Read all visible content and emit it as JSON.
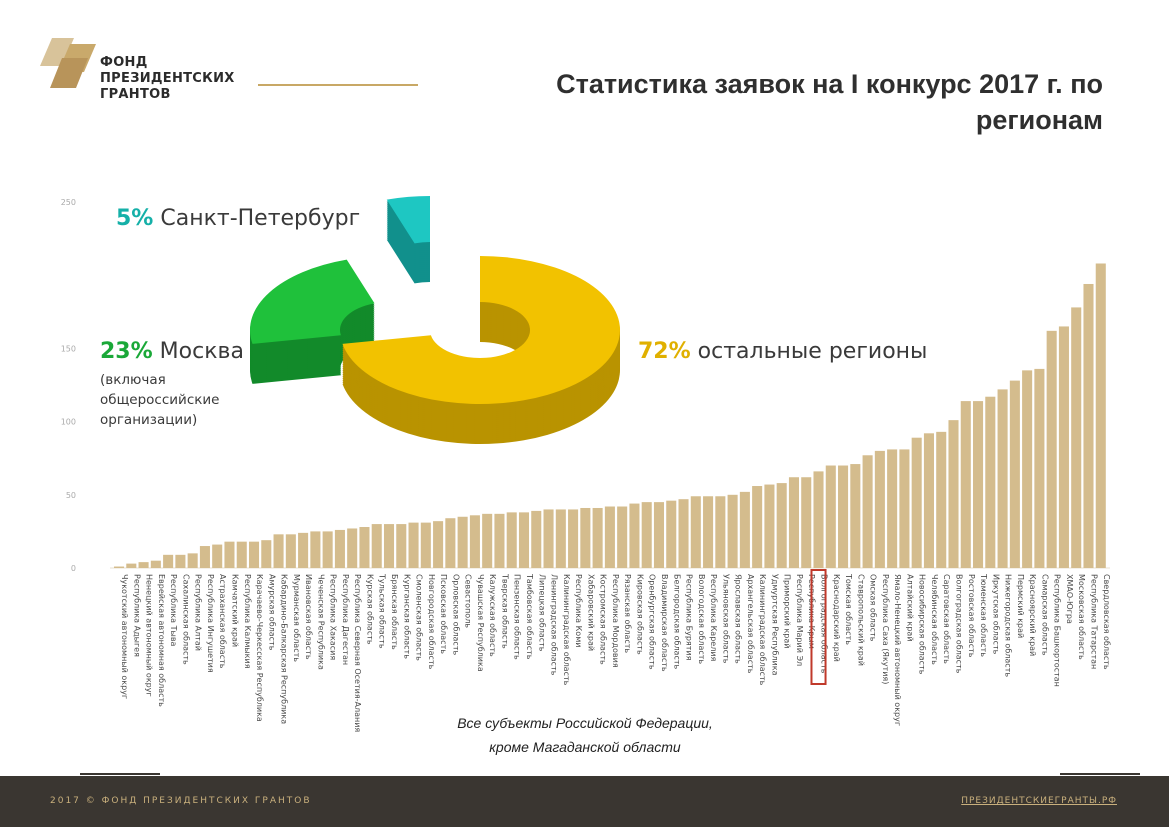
{
  "header": {
    "logo_lines": [
      "ФОНД",
      "ПРЕЗИДЕНТСКИХ",
      "ГРАНТОВ"
    ],
    "title": "Статистика заявок на I конкурс 2017 г. по регионам"
  },
  "pie": {
    "segments": [
      {
        "name": "spb",
        "percent": "5%",
        "label": "Санкт-Петербург",
        "value": 5,
        "color": "#1ec7c2"
      },
      {
        "name": "moscow",
        "percent": "23%",
        "label": "Москва",
        "value": 23,
        "color": "#1fc13b",
        "note": "(включая общероссийские организации)"
      },
      {
        "name": "other",
        "percent": "72%",
        "label": "остальные регионы",
        "value": 72,
        "color": "#f2c200"
      }
    ]
  },
  "caption": {
    "line1": "Все субъекты Российской Федерации,",
    "line2": "кроме Магаданской области"
  },
  "footer": {
    "left": "2017 © ФОНД ПРЕЗИДЕНТСКИХ ГРАНТОВ",
    "right": "ПРЕЗИДЕНТСКИЕГРАНТЫ.РФ"
  },
  "chart_data": {
    "type": "bar",
    "title": "Статистика заявок на I конкурс 2017 г. по регионам",
    "xlabel": "",
    "ylabel": "",
    "ylim": [
      0,
      250
    ],
    "yticks": [
      0,
      50,
      100,
      150,
      250
    ],
    "bar_color": "#d4bc8d",
    "highlight_color": "#c0392b",
    "highlight_index": 57,
    "categories": [
      "Чукотский автономный округ",
      "Республика Адыгея",
      "Ненецкий автономный округ",
      "Еврейская автономная область",
      "Республика Тыва",
      "Сахалинская область",
      "Республика Алтай",
      "Республика Ингушетия",
      "Астраханская область",
      "Камчатский край",
      "Республика Калмыкия",
      "Карачаево-Черкесская Республика",
      "Амурская область",
      "Кабардино-Балкарская Республика",
      "Мурманская область",
      "Ивановская область",
      "Чеченская Республика",
      "Республика Хакасия",
      "Республика Дагестан",
      "Республика Северная Осетия-Алания",
      "Курская область",
      "Тульская область",
      "Брянская область",
      "Курганская область",
      "Смоленская область",
      "Новгородская область",
      "Псковская область",
      "Орловская область",
      "Севастополь",
      "Чувашская Республика",
      "Калужская область",
      "Тверская область",
      "Пензенская область",
      "Тамбовская область",
      "Липецкая область",
      "Ленинградская область",
      "Калининградская область",
      "Республика Коми",
      "Хабаровский край",
      "Костромская область",
      "Республика Мордовия",
      "Рязанская область",
      "Кировская область",
      "Оренбургская область",
      "Владимирская область",
      "Белгородская область",
      "Республика Бурятия",
      "Вологодская область",
      "Республика Карелия",
      "Ульяновская область",
      "Ярославская область",
      "Архангельская область",
      "Калининградская область",
      "Удмуртская Республика",
      "Приморский край",
      "Республика Марий Эл",
      "Республика Крым",
      "Волгоградская область",
      "Краснодарский край",
      "Томская область",
      "Ставропольский край",
      "Омская область",
      "Республика Саха (Якутия)",
      "Ямало-Ненецкий автономный округ",
      "Алтайский край",
      "Новосибирская область",
      "Челябинская область",
      "Саратовская область",
      "Волгоградская область",
      "Ростовская область",
      "Тюменская область",
      "Иркутская область",
      "Нижегородская область",
      "Пермский край",
      "Красноярский край",
      "Самарская область",
      "Республика Башкортостан",
      "ХМАО-Югра",
      "Московская область",
      "Республика Татарстан",
      "Свердловская область"
    ],
    "values": [
      1,
      3,
      4,
      5,
      9,
      9,
      10,
      15,
      16,
      18,
      18,
      18,
      19,
      23,
      23,
      24,
      25,
      25,
      26,
      27,
      28,
      30,
      30,
      30,
      31,
      31,
      32,
      34,
      35,
      36,
      37,
      37,
      38,
      38,
      39,
      40,
      40,
      40,
      41,
      41,
      42,
      42,
      44,
      45,
      45,
      46,
      47,
      49,
      49,
      49,
      50,
      52,
      56,
      57,
      58,
      62,
      62,
      66,
      70,
      70,
      71,
      77,
      80,
      81,
      81,
      89,
      92,
      93,
      101,
      114,
      114,
      117,
      122,
      128,
      135,
      136,
      162,
      165,
      178,
      194,
      208
    ]
  }
}
